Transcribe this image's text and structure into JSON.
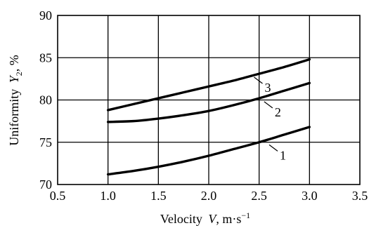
{
  "chart_data": {
    "type": "line",
    "xlabel_prefix": "Velocity",
    "xlabel_var": "V",
    "xlabel_unit": ", m·s",
    "xlabel_unit_exp": "−1",
    "ylabel_prefix": "Uniformity",
    "ylabel_var": "Y",
    "ylabel_sub": "2",
    "ylabel_unit": ", %",
    "xlim": [
      0.5,
      3.5
    ],
    "ylim": [
      70,
      90
    ],
    "x_ticks": [
      "0.5",
      "1.0",
      "1.5",
      "2.0",
      "2.5",
      "3.0",
      "3.5"
    ],
    "y_ticks": [
      "70",
      "75",
      "80",
      "85",
      "90"
    ],
    "grid": true,
    "series": [
      {
        "name": "1",
        "x": [
          1.0,
          1.25,
          1.5,
          1.75,
          2.0,
          2.25,
          2.5,
          2.75,
          3.0
        ],
        "y": [
          71.2,
          71.6,
          72.1,
          72.7,
          73.4,
          74.2,
          75.0,
          75.9,
          76.8
        ],
        "label_at": [
          2.6,
          74.7
        ]
      },
      {
        "name": "2",
        "x": [
          1.0,
          1.25,
          1.5,
          1.75,
          2.0,
          2.25,
          2.5,
          2.75,
          3.0
        ],
        "y": [
          77.4,
          77.5,
          77.8,
          78.2,
          78.7,
          79.4,
          80.2,
          81.1,
          82.0
        ],
        "label_at": [
          2.55,
          79.8
        ]
      },
      {
        "name": "3",
        "x": [
          1.0,
          1.25,
          1.5,
          1.75,
          2.0,
          2.25,
          2.5,
          2.75,
          3.0
        ],
        "y": [
          78.8,
          79.5,
          80.2,
          80.9,
          81.6,
          82.3,
          83.1,
          83.9,
          84.8
        ],
        "label_at": [
          2.45,
          82.7
        ]
      }
    ]
  }
}
